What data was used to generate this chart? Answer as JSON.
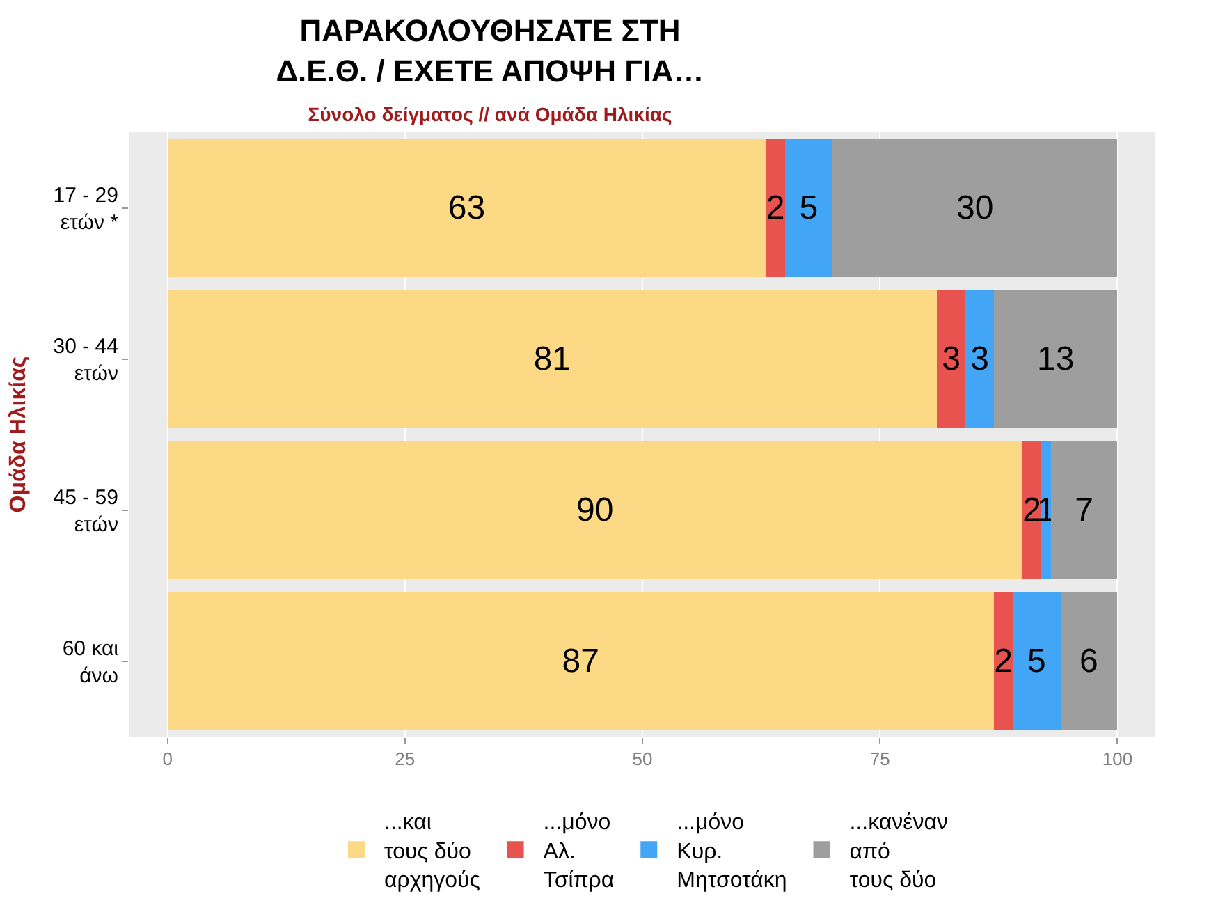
{
  "chart_data": {
    "type": "bar",
    "orientation": "horizontal",
    "stacked": true,
    "title": "ΠΑΡΑΚΟΛΟΥΘΗΣΑΤΕ ΣΤΗ\nΔ.Ε.Θ. / ΕΧΕΤΕ ΑΠΟΨΗ ΓΙΑ…",
    "subtitle": "Σύνολο δείγματος // ανά Ομάδα Ηλικίας",
    "ylabel": "Ομάδα Ηλικίας",
    "categories": [
      "17 - 29\nετών *",
      "30 - 44\nετών",
      "45 - 59\nετών",
      "60 και\nάνω"
    ],
    "series": [
      {
        "name": "...και\nτους δύο\nαρχηγούς",
        "color": "#fdd985",
        "values": [
          63,
          81,
          90,
          87
        ]
      },
      {
        "name": "...μόνο\nΑλ.\nΤσίπρα",
        "color": "#e8534f",
        "values": [
          2,
          3,
          2,
          2
        ]
      },
      {
        "name": "...μόνο\nΚυρ.\nΜητσοτάκη",
        "color": "#42a5f5",
        "values": [
          5,
          3,
          1,
          5
        ]
      },
      {
        "name": "...κανέναν\nαπό\nτους δύο",
        "color": "#9e9e9e",
        "values": [
          30,
          13,
          7,
          6
        ]
      }
    ],
    "xlim": [
      -4,
      104
    ],
    "xticks": [
      0,
      25,
      50,
      75,
      100
    ],
    "grid": "x",
    "legend": "bottom",
    "data_labels": true
  }
}
